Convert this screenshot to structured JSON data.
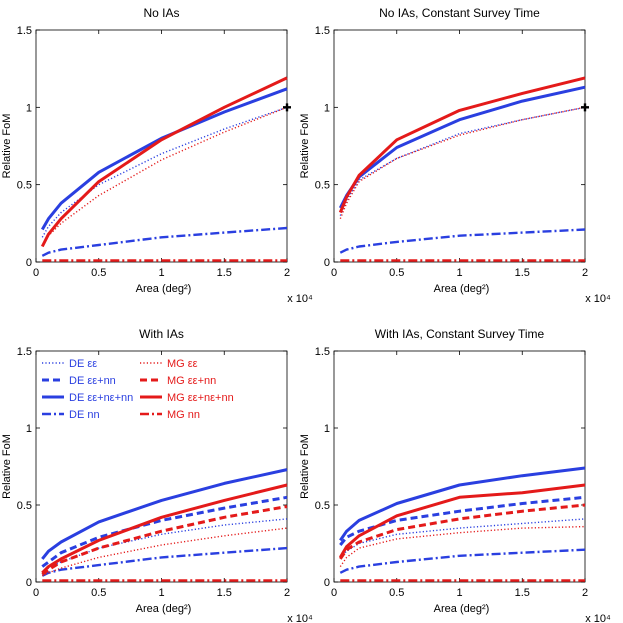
{
  "chart_data": [
    {
      "type": "line",
      "title": "No IAs",
      "xlabel": "Area (deg²)",
      "ylabel": "Relative FoM",
      "x_multiplier": "x 10⁴",
      "xlim": [
        0,
        20000
      ],
      "ylim": [
        0,
        1.5
      ],
      "xticks": [
        0,
        0.5,
        1,
        1.5,
        2
      ],
      "yticks": [
        0,
        0.5,
        1,
        1.5
      ],
      "marker": {
        "x": 20000,
        "y": 1.0,
        "symbol": "+"
      },
      "x": [
        500,
        1000,
        2000,
        5000,
        10000,
        15000,
        20000
      ],
      "series": [
        {
          "name": "DE εε",
          "key": "de_ee",
          "values": [
            0.16,
            0.23,
            0.32,
            0.5,
            0.7,
            0.86,
            1.0
          ]
        },
        {
          "name": "DE εε+nn+nε",
          "key": "de_all",
          "values": [
            0.21,
            0.28,
            0.38,
            0.58,
            0.8,
            0.97,
            1.12
          ]
        },
        {
          "name": "DE nn",
          "key": "de_nn",
          "values": [
            0.04,
            0.06,
            0.08,
            0.11,
            0.16,
            0.19,
            0.22
          ]
        },
        {
          "name": "MG εε",
          "key": "mg_ee",
          "values": [
            0.11,
            0.17,
            0.25,
            0.43,
            0.66,
            0.84,
            1.0
          ]
        },
        {
          "name": "MG εε+nε+nn",
          "key": "mg_all",
          "values": [
            0.1,
            0.18,
            0.28,
            0.52,
            0.79,
            1.0,
            1.19
          ]
        },
        {
          "name": "MG nn",
          "key": "mg_nn",
          "values": [
            0.01,
            0.01,
            0.01,
            0.01,
            0.01,
            0.01,
            0.01
          ]
        }
      ]
    },
    {
      "type": "line",
      "title": "No IAs, Constant Survey Time",
      "xlabel": "Area (deg²)",
      "ylabel": "Relative FoM",
      "x_multiplier": "x 10⁴",
      "xlim": [
        0,
        20000
      ],
      "ylim": [
        0,
        1.5
      ],
      "xticks": [
        0,
        0.5,
        1,
        1.5,
        2
      ],
      "yticks": [
        0,
        0.5,
        1,
        1.5
      ],
      "marker": {
        "x": 20000,
        "y": 1.0,
        "symbol": "+"
      },
      "x": [
        500,
        1000,
        2000,
        5000,
        10000,
        15000,
        20000
      ],
      "series": [
        {
          "name": "DE εε",
          "key": "de_ee",
          "values": [
            0.3,
            0.4,
            0.53,
            0.67,
            0.83,
            0.92,
            1.0
          ]
        },
        {
          "name": "DE εε+nn+nε",
          "key": "de_all",
          "values": [
            0.35,
            0.43,
            0.55,
            0.74,
            0.92,
            1.04,
            1.13
          ]
        },
        {
          "name": "DE nn",
          "key": "de_nn",
          "values": [
            0.06,
            0.08,
            0.1,
            0.13,
            0.17,
            0.19,
            0.21
          ]
        },
        {
          "name": "MG εε",
          "key": "mg_ee",
          "values": [
            0.28,
            0.38,
            0.52,
            0.67,
            0.82,
            0.92,
            1.0
          ]
        },
        {
          "name": "MG εε+nε+nn",
          "key": "mg_all",
          "values": [
            0.32,
            0.42,
            0.56,
            0.79,
            0.98,
            1.09,
            1.19
          ]
        },
        {
          "name": "MG nn",
          "key": "mg_nn",
          "values": [
            0.01,
            0.01,
            0.01,
            0.01,
            0.01,
            0.01,
            0.01
          ]
        }
      ]
    },
    {
      "type": "line",
      "title": "With IAs",
      "xlabel": "Area (deg²)",
      "ylabel": "Relative FoM",
      "x_multiplier": "x 10⁴",
      "xlim": [
        0,
        20000
      ],
      "ylim": [
        0,
        1.5
      ],
      "xticks": [
        0,
        0.5,
        1,
        1.5,
        2
      ],
      "yticks": [
        0,
        0.5,
        1,
        1.5
      ],
      "legend_position": "top-left",
      "x": [
        500,
        1000,
        2000,
        5000,
        10000,
        15000,
        20000
      ],
      "series": [
        {
          "name": "DE εε",
          "key": "de_ee",
          "values": [
            0.06,
            0.09,
            0.13,
            0.22,
            0.31,
            0.37,
            0.41
          ]
        },
        {
          "name": "DE εε+nn",
          "key": "de_een",
          "values": [
            0.1,
            0.13,
            0.19,
            0.29,
            0.4,
            0.48,
            0.55
          ]
        },
        {
          "name": "DE εε+nε+nn",
          "key": "de_all",
          "values": [
            0.15,
            0.2,
            0.26,
            0.39,
            0.53,
            0.64,
            0.73
          ]
        },
        {
          "name": "DE nn",
          "key": "de_nn",
          "values": [
            0.04,
            0.06,
            0.08,
            0.11,
            0.16,
            0.19,
            0.22
          ]
        },
        {
          "name": "MG εε",
          "key": "mg_ee",
          "values": [
            0.04,
            0.06,
            0.09,
            0.16,
            0.24,
            0.3,
            0.35
          ]
        },
        {
          "name": "MG εε+nn",
          "key": "mg_een",
          "values": [
            0.05,
            0.08,
            0.13,
            0.22,
            0.33,
            0.42,
            0.49
          ]
        },
        {
          "name": "MG εε+nε+nn",
          "key": "mg_all",
          "values": [
            0.06,
            0.1,
            0.15,
            0.27,
            0.42,
            0.53,
            0.63
          ]
        },
        {
          "name": "MG nn",
          "key": "mg_nn",
          "values": [
            0.01,
            0.01,
            0.01,
            0.01,
            0.01,
            0.01,
            0.01
          ]
        }
      ]
    },
    {
      "type": "line",
      "title": "With IAs, Constant Survey Time",
      "xlabel": "Area (deg²)",
      "ylabel": "Relative FoM",
      "x_multiplier": "x 10⁴",
      "xlim": [
        0,
        20000
      ],
      "ylim": [
        0,
        1.5
      ],
      "xticks": [
        0,
        0.5,
        1,
        1.5,
        2
      ],
      "yticks": [
        0,
        0.5,
        1,
        1.5
      ],
      "x": [
        500,
        1000,
        2000,
        5000,
        10000,
        15000,
        20000
      ],
      "series": [
        {
          "name": "DE εε",
          "key": "de_ee",
          "values": [
            0.16,
            0.2,
            0.25,
            0.31,
            0.35,
            0.38,
            0.41
          ]
        },
        {
          "name": "DE εε+nn",
          "key": "de_een",
          "values": [
            0.24,
            0.29,
            0.33,
            0.4,
            0.46,
            0.51,
            0.55
          ]
        },
        {
          "name": "DE εε+nε+nn",
          "key": "de_all",
          "values": [
            0.27,
            0.33,
            0.4,
            0.51,
            0.63,
            0.69,
            0.74
          ]
        },
        {
          "name": "DE nn",
          "key": "de_nn",
          "values": [
            0.06,
            0.08,
            0.1,
            0.13,
            0.17,
            0.19,
            0.21
          ]
        },
        {
          "name": "MG εε",
          "key": "mg_ee",
          "values": [
            0.1,
            0.16,
            0.22,
            0.28,
            0.32,
            0.35,
            0.36
          ]
        },
        {
          "name": "MG εε+nn",
          "key": "mg_een",
          "values": [
            0.15,
            0.21,
            0.26,
            0.34,
            0.41,
            0.46,
            0.5
          ]
        },
        {
          "name": "MG εε+nε+nn",
          "key": "mg_all",
          "values": [
            0.16,
            0.23,
            0.3,
            0.43,
            0.55,
            0.58,
            0.63
          ]
        },
        {
          "name": "MG nn",
          "key": "mg_nn",
          "values": [
            0.01,
            0.01,
            0.01,
            0.01,
            0.01,
            0.01,
            0.01
          ]
        }
      ]
    }
  ],
  "legend": {
    "panel": 2,
    "columns": [
      [
        {
          "label": "DE εε",
          "key": "de_ee"
        },
        {
          "label": "DE εε+nn",
          "key": "de_een"
        },
        {
          "label": "DE εε+nε+nn",
          "key": "de_all"
        },
        {
          "label": "DE nn",
          "key": "de_nn"
        }
      ],
      [
        {
          "label": "MG εε",
          "key": "mg_ee"
        },
        {
          "label": "MG εε+nn",
          "key": "mg_een"
        },
        {
          "label": "MG εε+nε+nn",
          "key": "mg_all"
        },
        {
          "label": "MG nn",
          "key": "mg_nn"
        }
      ]
    ]
  },
  "styles": {
    "blue": "#2a3fe0",
    "red": "#e41a1a",
    "axis": "#000000"
  }
}
